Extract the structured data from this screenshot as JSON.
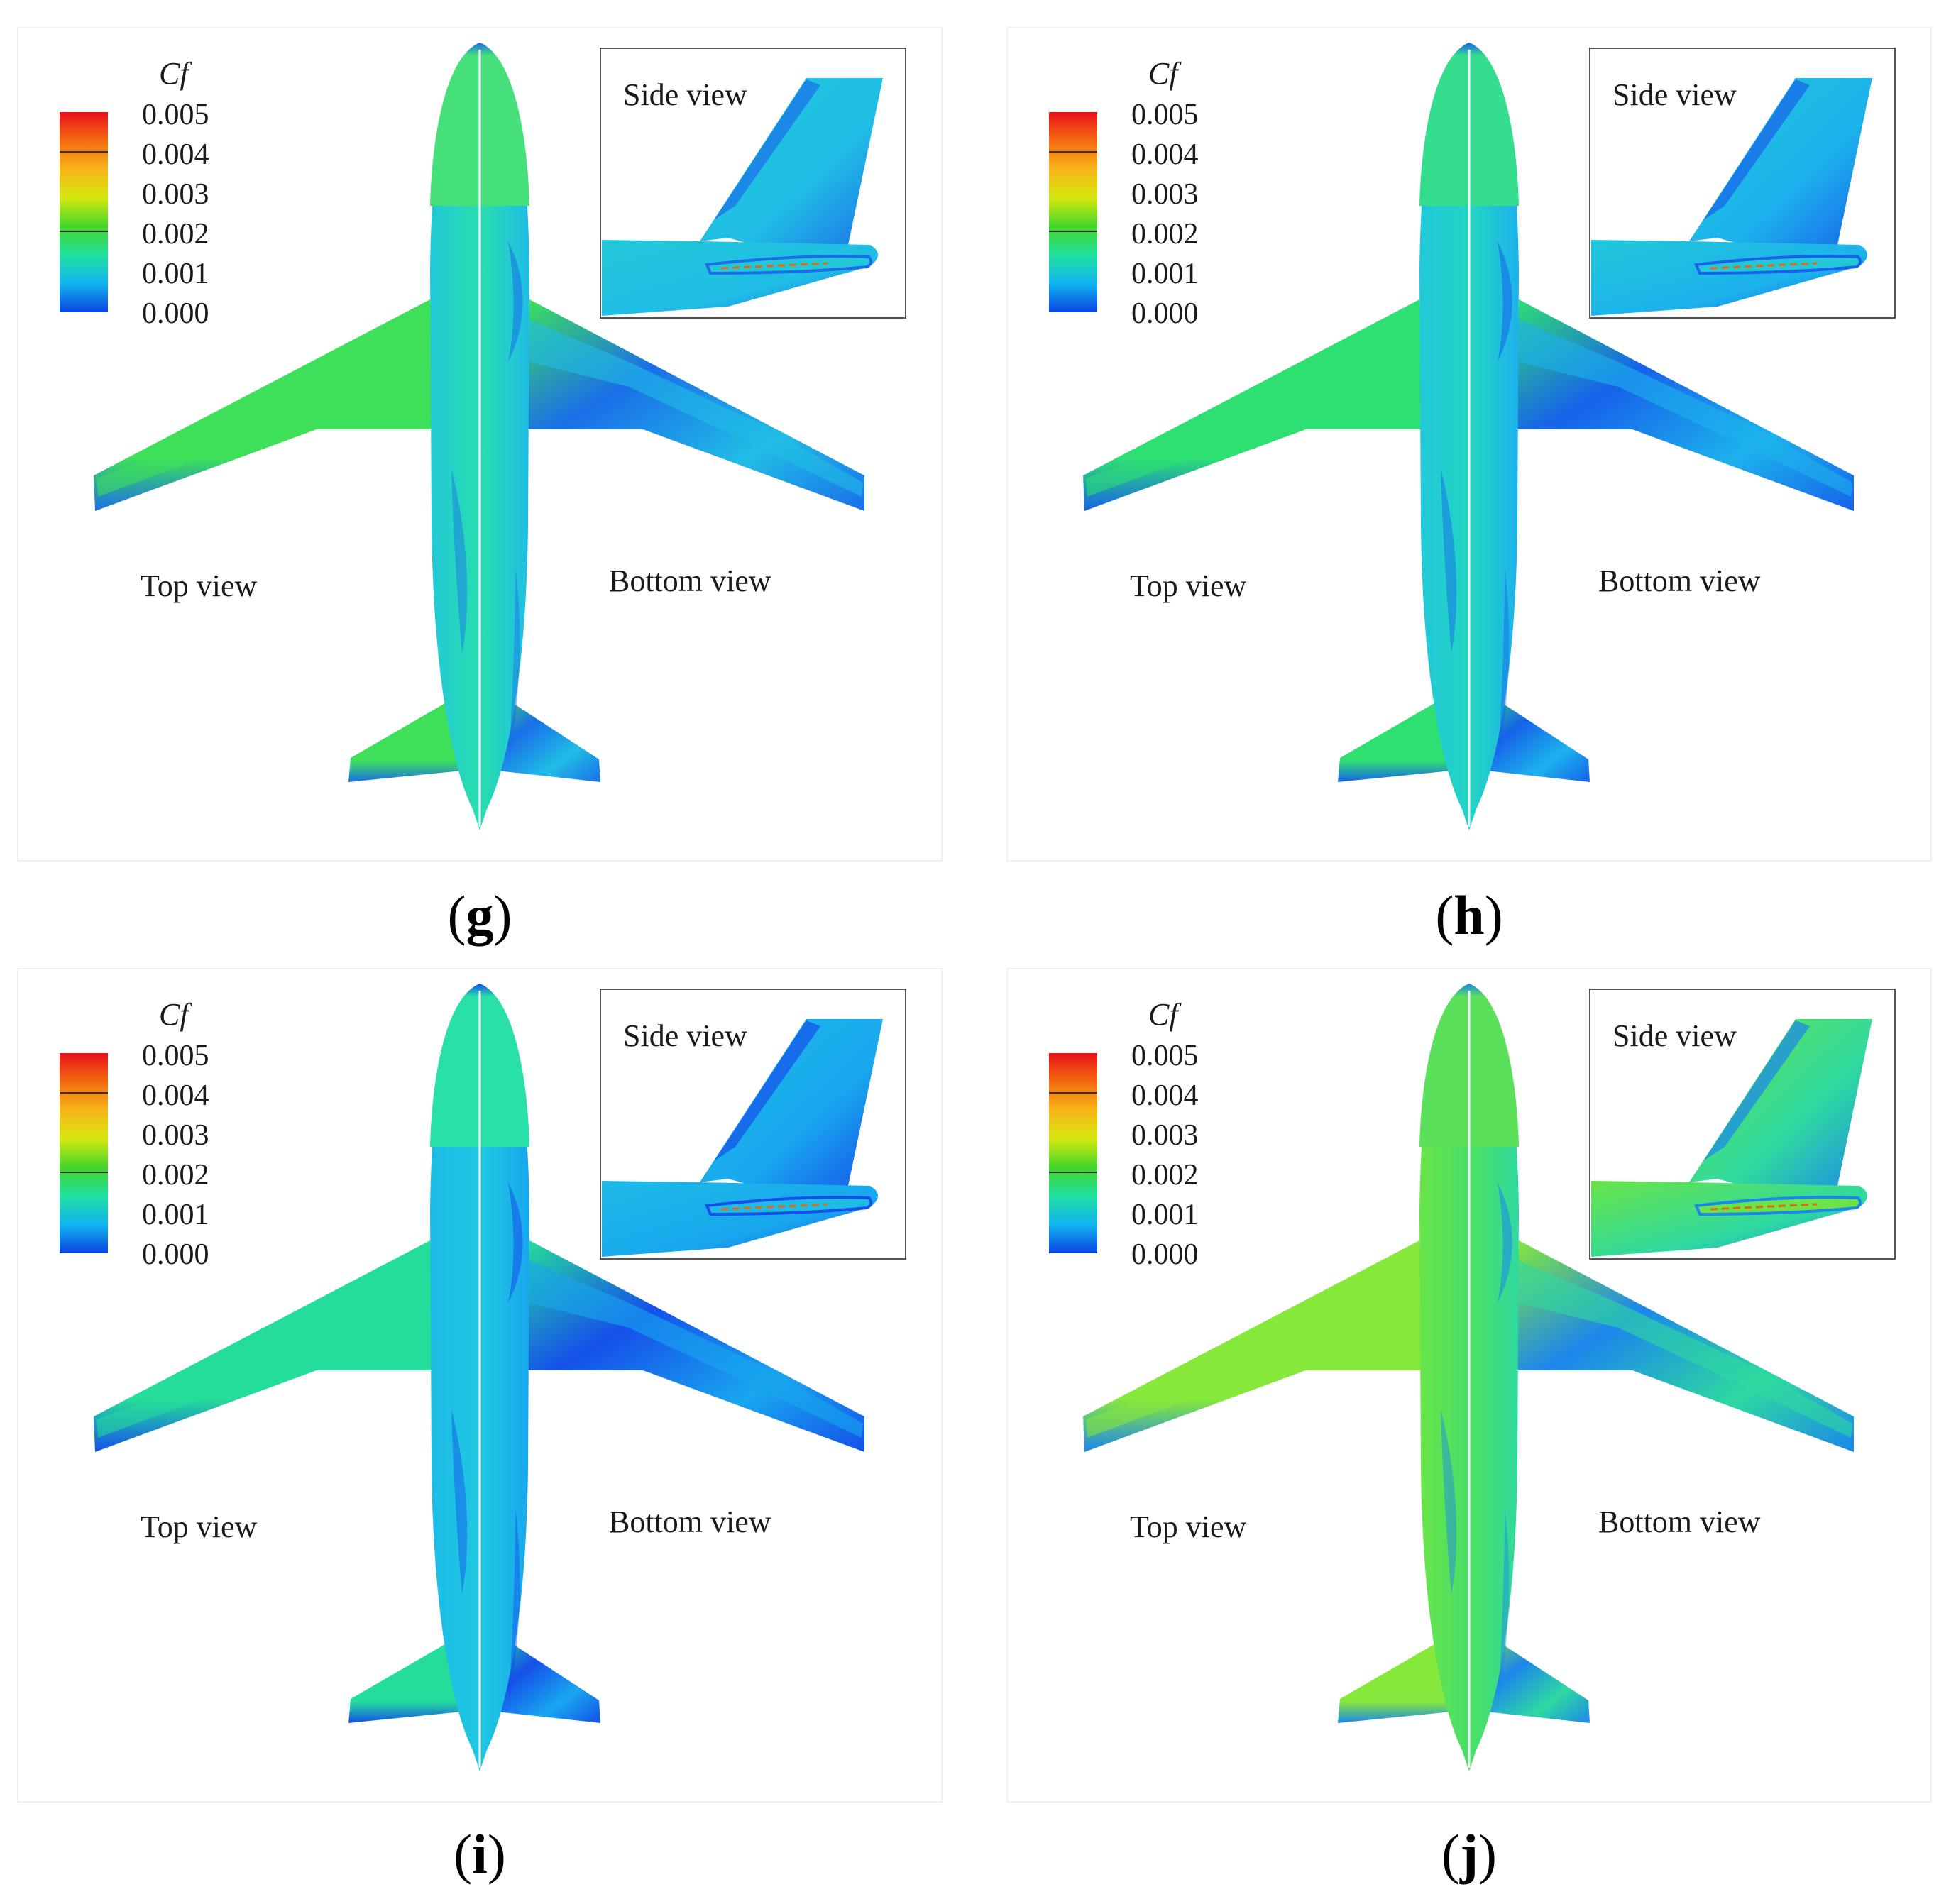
{
  "colorbar": {
    "title": "Cf",
    "ticks": [
      "0.005",
      "0.004",
      "0.003",
      "0.002",
      "0.001",
      "0.000"
    ],
    "colors": [
      "#e8121a",
      "#f46a10",
      "#f7b51a",
      "#d5e810",
      "#43d62a",
      "#1fe0a0",
      "#12b4f0",
      "#0a44e0"
    ]
  },
  "labels": {
    "side_view": "Side view",
    "top_view": "Top view",
    "bottom_view": "Bottom view"
  },
  "panels": [
    {
      "letter": "g",
      "fuselage": "#27dcb2",
      "nose": "#45e07a",
      "wing_top": "#3ee05a",
      "wing_bottom": "#20bde6",
      "low": "#1a6fe8",
      "fin": "#22c8d8"
    },
    {
      "letter": "h",
      "fuselage": "#22d3c6",
      "nose": "#35dd8e",
      "wing_top": "#2ee072",
      "wing_bottom": "#1cb2ec",
      "low": "#1762ea",
      "fin": "#22c8d8"
    },
    {
      "letter": "i",
      "fuselage": "#1ec6e2",
      "nose": "#28e0a8",
      "wing_top": "#25dd9a",
      "wing_bottom": "#18a7ee",
      "low": "#1550ea",
      "fin": "#1dbbe6"
    },
    {
      "letter": "j",
      "fuselage": "#4ae066",
      "nose": "#5ae05a",
      "wing_top": "#86e83a",
      "wing_bottom": "#2ed9a0",
      "low": "#1c86ec",
      "fin": "#6ae448"
    }
  ]
}
